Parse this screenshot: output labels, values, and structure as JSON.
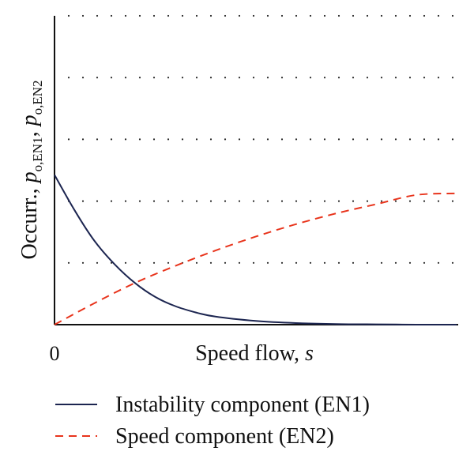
{
  "chart_data": {
    "type": "line",
    "title": "",
    "xlabel": "Speed flow, s",
    "xlabel_parts": {
      "text": "Speed flow, ",
      "var": "s"
    },
    "ylabel": "Occurr., p_o,EN1, p_o,EN2",
    "ylabel_parts": {
      "prefix": "Occurr., ",
      "var": "p",
      "sub1": "o,EN1",
      "sep": ", ",
      "sub2": "o,EN2"
    },
    "x_tick_labels": [
      "0"
    ],
    "xlim": [
      0,
      1
    ],
    "ylim": [
      0,
      1
    ],
    "grid": {
      "y": true,
      "x": false,
      "style": "dotted"
    },
    "y_gridlines": [
      0.2,
      0.4,
      0.6,
      0.8,
      1.0
    ],
    "legend": {
      "placement": "bottom"
    },
    "series": [
      {
        "name": "Instability component (EN1)",
        "color": "#1c2550",
        "dash": "solid",
        "x": [
          0,
          0.05,
          0.1,
          0.15,
          0.2,
          0.25,
          0.3,
          0.35,
          0.4,
          0.5,
          0.6,
          0.7,
          0.8,
          0.9,
          1.0
        ],
        "y": [
          0.485,
          0.37,
          0.27,
          0.195,
          0.135,
          0.09,
          0.06,
          0.04,
          0.026,
          0.012,
          0.005,
          0.002,
          0.001,
          0.0,
          0.0
        ]
      },
      {
        "name": "Speed component (EN2)",
        "color": "#e8341c",
        "dash": "dashed",
        "x": [
          0,
          0.1,
          0.2,
          0.3,
          0.4,
          0.5,
          0.6,
          0.7,
          0.8,
          0.9,
          1.0
        ],
        "y": [
          0.0,
          0.07,
          0.135,
          0.19,
          0.24,
          0.285,
          0.325,
          0.36,
          0.39,
          0.42,
          0.425
        ]
      }
    ]
  }
}
